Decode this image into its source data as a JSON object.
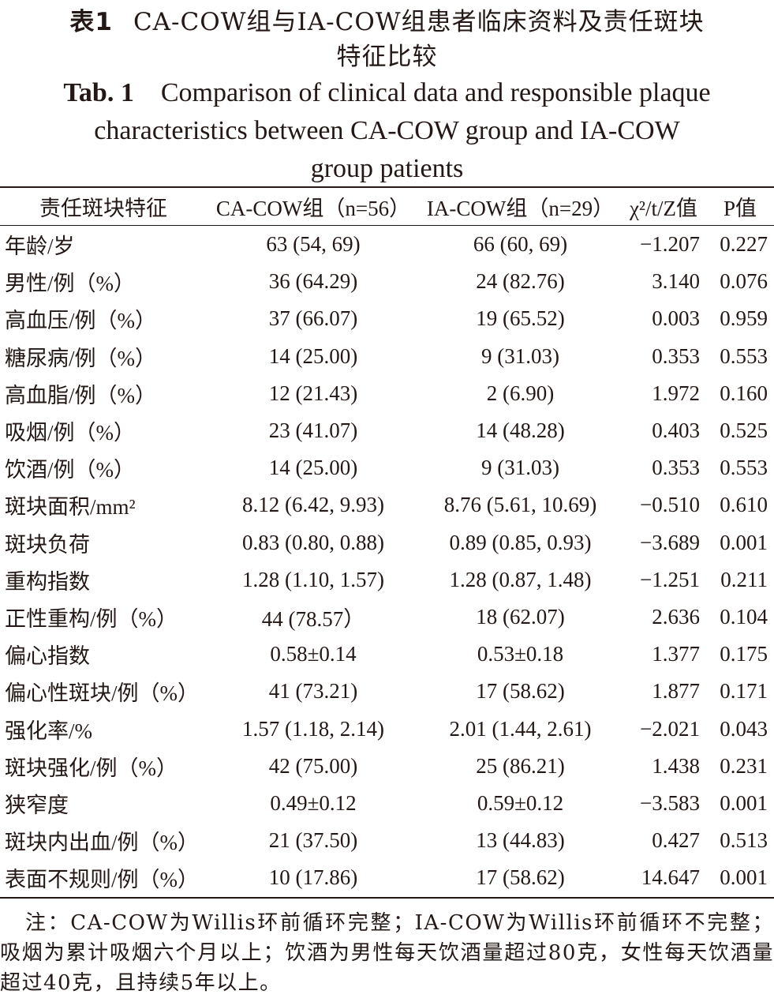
{
  "title_cn": {
    "label": "表1",
    "line1": "CA-COW组与IA-COW组患者临床资料及责任斑块",
    "line2": "特征比较"
  },
  "title_en": {
    "label": "Tab. 1",
    "line1": "Comparison of clinical data and responsible plaque",
    "line2": "characteristics between CA-COW group and IA-COW",
    "line3": "group patients"
  },
  "table": {
    "headers": [
      "责任斑块特征",
      "CA-COW组（n=56）",
      "IA-COW组（n=29）",
      "χ²/t/Z值",
      "P值"
    ],
    "rows": [
      [
        "年龄/岁",
        "63 (54, 69)",
        "66 (60, 69)",
        "−1.207",
        "0.227"
      ],
      [
        "男性/例（%）",
        "36 (64.29)",
        "24 (82.76)",
        "3.140",
        "0.076"
      ],
      [
        "高血压/例（%）",
        "37 (66.07)",
        "19 (65.52)",
        "0.003",
        "0.959"
      ],
      [
        "糖尿病/例（%）",
        "14 (25.00)",
        "9 (31.03)",
        "0.353",
        "0.553"
      ],
      [
        "高血脂/例（%）",
        "12 (21.43)",
        "2 (6.90)",
        "1.972",
        "0.160"
      ],
      [
        "吸烟/例（%）",
        "23 (41.07)",
        "14 (48.28)",
        "0.403",
        "0.525"
      ],
      [
        "饮酒/例（%）",
        "14 (25.00)",
        "9 (31.03)",
        "0.353",
        "0.553"
      ],
      [
        "斑块面积/mm²",
        "8.12 (6.42, 9.93)",
        "8.76 (5.61, 10.69)",
        "−0.510",
        "0.610"
      ],
      [
        "斑块负荷",
        "0.83 (0.80, 0.88)",
        "0.89 (0.85, 0.93)",
        "−3.689",
        "0.001"
      ],
      [
        "重构指数",
        "1.28 (1.10, 1.57)",
        "1.28 (0.87, 1.48)",
        "−1.251",
        "0.211"
      ],
      [
        "正性重构/例（%）",
        "44 (78.57）",
        "18 (62.07)",
        "2.636",
        "0.104"
      ],
      [
        "偏心指数",
        "0.58±0.14",
        "0.53±0.18",
        "1.377",
        "0.175"
      ],
      [
        "偏心性斑块/例（%）",
        "41 (73.21)",
        "17 (58.62)",
        "1.877",
        "0.171"
      ],
      [
        "强化率/%",
        "1.57 (1.18, 2.14)",
        "2.01 (1.44, 2.61)",
        "−2.021",
        "0.043"
      ],
      [
        "斑块强化/例（%）",
        "42 (75.00)",
        "25 (86.21)",
        "1.438",
        "0.231"
      ],
      [
        "狭窄度",
        "0.49±0.12",
        "0.59±0.12",
        "−3.583",
        "0.001"
      ],
      [
        "斑块内出血/例（%）",
        "21 (37.50)",
        "13 (44.83)",
        "0.427",
        "0.513"
      ],
      [
        "表面不规则/例（%）",
        "10 (17.86)",
        "17 (58.62)",
        "14.647",
        "0.001"
      ]
    ]
  },
  "note": "注：CA-COW为Willis环前循环完整；IA-COW为Willis环前循环不完整；吸烟为累计吸烟六个月以上；饮酒为男性每天饮酒量超过80克，女性每天饮酒量超过40克，且持续5年以上。"
}
